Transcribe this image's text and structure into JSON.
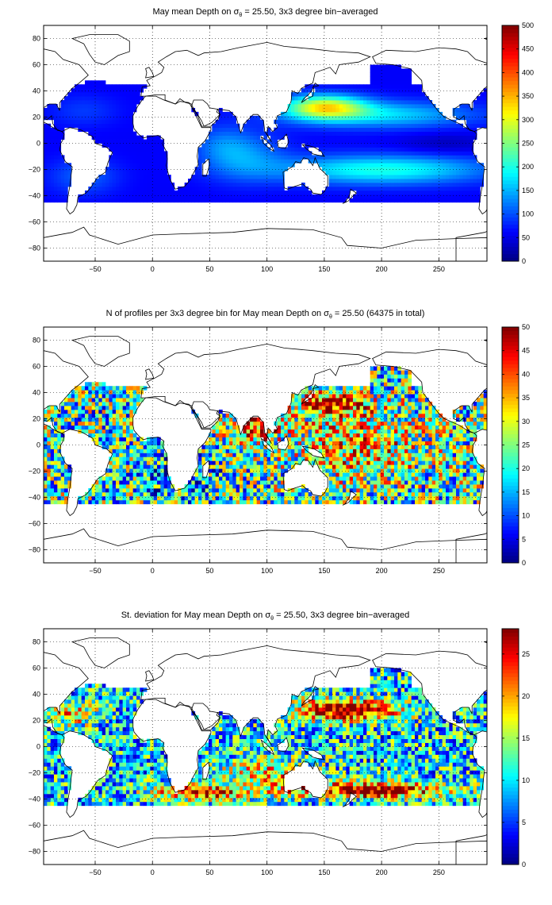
{
  "chart_data": [
    {
      "type": "heatmap",
      "title": {
        "prefix": "May mean Depth on ",
        "sigma": "σ",
        "sigma_sub": "θ",
        "suffix": " = 25.50, 3x3 degree bin−averaged"
      },
      "xlim": [
        -95,
        292
      ],
      "ylim": [
        -90,
        90
      ],
      "xticks": [
        -50,
        0,
        50,
        100,
        150,
        200,
        250
      ],
      "yticks": [
        -80,
        -60,
        -40,
        -20,
        0,
        20,
        40,
        60,
        80
      ],
      "colorbar": {
        "range": [
          0,
          500
        ],
        "ticks": [
          0,
          50,
          100,
          150,
          200,
          250,
          300,
          350,
          400,
          450,
          500
        ]
      },
      "grid": true,
      "colormap": "jet"
    },
    {
      "type": "heatmap",
      "title": {
        "prefix": "N of profiles per 3x3 degree bin for May mean Depth on ",
        "sigma": "σ",
        "sigma_sub": "θ",
        "suffix": " = 25.50 (64375 in total)"
      },
      "xlim": [
        -95,
        292
      ],
      "ylim": [
        -90,
        90
      ],
      "xticks": [
        -50,
        0,
        50,
        100,
        150,
        200,
        250
      ],
      "yticks": [
        -80,
        -60,
        -40,
        -20,
        0,
        20,
        40,
        60,
        80
      ],
      "colorbar": {
        "range": [
          0,
          50
        ],
        "ticks": [
          0,
          5,
          10,
          15,
          20,
          25,
          30,
          35,
          40,
          45,
          50
        ]
      },
      "grid": true,
      "colormap": "jet"
    },
    {
      "type": "heatmap",
      "title": {
        "prefix": "St. deviation for May mean Depth on ",
        "sigma": "σ",
        "sigma_sub": "θ",
        "suffix": " = 25.50, 3x3 degree bin−averaged"
      },
      "xlim": [
        -95,
        292
      ],
      "ylim": [
        -90,
        90
      ],
      "xticks": [
        -50,
        0,
        50,
        100,
        150,
        200,
        250
      ],
      "yticks": [
        -80,
        -60,
        -40,
        -20,
        0,
        20,
        40,
        60,
        80
      ],
      "colorbar": {
        "range": [
          0,
          28
        ],
        "ticks": [
          0,
          5,
          10,
          15,
          20,
          25
        ]
      },
      "grid": true,
      "colormap": "jet"
    }
  ]
}
